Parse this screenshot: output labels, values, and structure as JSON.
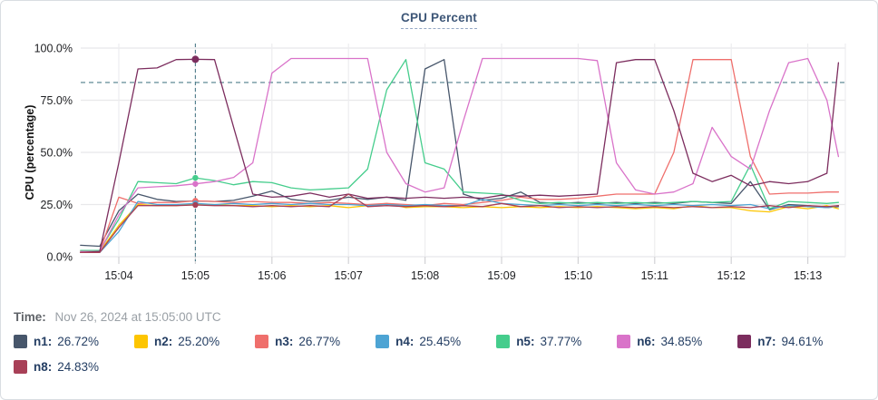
{
  "footer": {
    "time_label": "Time:",
    "time_value": "Nov 26, 2024 at 15:05:00 UTC"
  },
  "legend": {
    "items": [
      {
        "label": "n1:",
        "value": "26.72%",
        "color": "#47566b"
      },
      {
        "label": "n2:",
        "value": "25.20%",
        "color": "#fdc500"
      },
      {
        "label": "n3:",
        "value": "26.77%",
        "color": "#ef6f6c"
      },
      {
        "label": "n4:",
        "value": "25.45%",
        "color": "#4da4d4"
      },
      {
        "label": "n5:",
        "value": "37.77%",
        "color": "#45cd8c"
      },
      {
        "label": "n6:",
        "value": "34.85%",
        "color": "#d973c9"
      },
      {
        "label": "n7:",
        "value": "94.61%",
        "color": "#7c2d5e"
      },
      {
        "label": "n8:",
        "value": "24.83%",
        "color": "#a84057"
      }
    ]
  },
  "chart_data": {
    "type": "line",
    "title": "CPU Percent",
    "xlabel": "",
    "ylabel": "CPU (percentage)",
    "ylim": [
      0,
      100
    ],
    "grid": true,
    "legend_position": "bottom",
    "ytick_values": [
      0,
      25,
      50,
      75,
      100
    ],
    "ytick_labels": [
      "0.0%",
      "25.0%",
      "50.0%",
      "75.0%",
      "100.0%"
    ],
    "xtick_values": [
      4,
      5,
      6,
      7,
      8,
      9,
      10,
      11,
      12,
      13
    ],
    "xtick_labels": [
      "15:04",
      "15:05",
      "15:06",
      "15:07",
      "15:08",
      "15:09",
      "15:10",
      "15:11",
      "15:12",
      "15:13"
    ],
    "threshold_value": 83.5,
    "crosshair_x": 5.0,
    "x_minutes": [
      3.5,
      3.75,
      4.0,
      4.25,
      4.5,
      4.75,
      5.0,
      5.25,
      5.5,
      5.75,
      6.0,
      6.25,
      6.5,
      6.75,
      7.0,
      7.25,
      7.5,
      7.75,
      8.0,
      8.25,
      8.5,
      8.75,
      9.0,
      9.25,
      9.5,
      9.75,
      10.0,
      10.25,
      10.5,
      10.75,
      11.0,
      11.25,
      11.5,
      11.75,
      12.0,
      12.25,
      12.5,
      12.75,
      13.0,
      13.25,
      13.4
    ],
    "series": [
      {
        "name": "n1",
        "color": "#47566b",
        "values": [
          5.5,
          5.0,
          22,
          30,
          27.5,
          26.5,
          26.7,
          26.5,
          27,
          29,
          31.5,
          27.5,
          26.5,
          27,
          28.5,
          27.5,
          28.5,
          27,
          90,
          94.5,
          30,
          27,
          28,
          31,
          26,
          25.5,
          26,
          25.5,
          26,
          25.5,
          26,
          25.5,
          26.5,
          26,
          25.5,
          36,
          22.5,
          25,
          24.5,
          23.5,
          24
        ]
      },
      {
        "name": "n2",
        "color": "#fdc500",
        "values": [
          2.5,
          2.5,
          15,
          25,
          24.5,
          24.5,
          25.2,
          25,
          24.5,
          24.5,
          24,
          24.5,
          24,
          24.5,
          23.5,
          24.5,
          25.5,
          23.5,
          24,
          24,
          23.5,
          24,
          23.5,
          24,
          23.5,
          24,
          23.5,
          24,
          23.5,
          23,
          23.5,
          23,
          24.5,
          23.5,
          23.5,
          22,
          21.5,
          24,
          23,
          24.5,
          23
        ]
      },
      {
        "name": "n3",
        "color": "#ef6f6c",
        "values": [
          2,
          2.5,
          28.5,
          25.5,
          26,
          26,
          26.8,
          26.5,
          26,
          26.5,
          26,
          26,
          25.5,
          26,
          25.5,
          25,
          25.5,
          25,
          24.5,
          25.5,
          25,
          26,
          27,
          28.5,
          27.5,
          27.5,
          28,
          29,
          30,
          30,
          30,
          50,
          94.5,
          94.5,
          94.5,
          48,
          30,
          30.5,
          30.5,
          31,
          31
        ]
      },
      {
        "name": "n4",
        "color": "#4da4d4",
        "values": [
          2,
          2,
          12,
          26.5,
          25,
          25,
          25.5,
          25,
          25.5,
          25,
          25.5,
          25,
          25.5,
          25,
          25,
          24.5,
          25,
          24.5,
          25,
          24.5,
          24.5,
          27.5,
          25.5,
          25,
          24.5,
          25,
          24.5,
          25,
          24.5,
          25,
          24.5,
          25,
          24.5,
          25,
          24.5,
          25,
          23,
          24.5,
          24,
          23.5,
          24.5
        ]
      },
      {
        "name": "n5",
        "color": "#45cd8c",
        "values": [
          3,
          3,
          18,
          36,
          35.5,
          35,
          37.8,
          36.5,
          34.5,
          36,
          35.5,
          33,
          32,
          32.5,
          33,
          42,
          80,
          94.5,
          45,
          42,
          31,
          30.5,
          30,
          27,
          25.5,
          26,
          25.5,
          26,
          25.5,
          26,
          25.5,
          26,
          26.5,
          26,
          26.5,
          44,
          23,
          26.5,
          26,
          25.5,
          26
        ]
      },
      {
        "name": "n6",
        "color": "#d973c9",
        "values": [
          2.5,
          2.5,
          20,
          33,
          33.5,
          34,
          34.9,
          36,
          38,
          45,
          88,
          95,
          95,
          95,
          95,
          95,
          50,
          35,
          31,
          33,
          65,
          95,
          95,
          95,
          95,
          95,
          95,
          94,
          45,
          32,
          30,
          31,
          35,
          62,
          48,
          42,
          70,
          93,
          95,
          75,
          48
        ]
      },
      {
        "name": "n7",
        "color": "#7c2d5e",
        "values": [
          2,
          2.5,
          45,
          90,
          90.5,
          94.5,
          94.6,
          94.5,
          62,
          30,
          28.5,
          29,
          30.5,
          28.5,
          30,
          28,
          28.5,
          28,
          28.5,
          28,
          28.5,
          28,
          29.5,
          29,
          29.5,
          29,
          29.5,
          30,
          93,
          94.5,
          94.5,
          70,
          40,
          36,
          39,
          34,
          36,
          35,
          36,
          40,
          93
        ]
      },
      {
        "name": "n8",
        "color": "#a84057",
        "values": [
          2,
          2,
          14,
          24.5,
          24.5,
          24.5,
          24.8,
          24.5,
          24.5,
          24,
          24.5,
          24,
          24.5,
          24,
          30,
          24,
          24.5,
          24,
          24.5,
          24,
          24.5,
          24,
          25.5,
          24,
          24.5,
          23.5,
          24,
          23.5,
          24,
          23.5,
          24,
          23.5,
          24,
          23.5,
          24,
          23.5,
          24.5,
          23.5,
          24.5,
          24,
          24.5
        ]
      }
    ]
  }
}
